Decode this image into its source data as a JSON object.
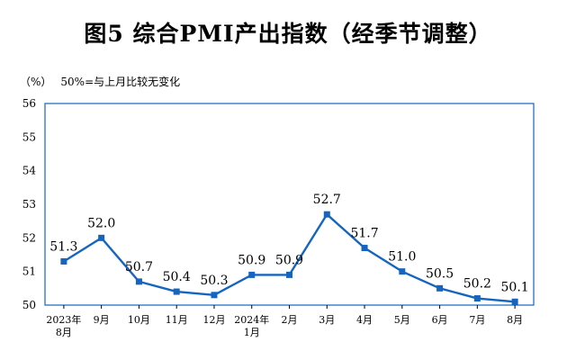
{
  "title": "图5  综合PMI产出指数（经季节调整）",
  "unit_label": "（%）",
  "reference_note": "50%=与上月比较无变化",
  "colors": {
    "series": "#1565c0",
    "frame": "#1565c0"
  },
  "chart_data": {
    "type": "line",
    "categories": [
      [
        "2023年",
        "8月"
      ],
      [
        "9月"
      ],
      [
        "10月"
      ],
      [
        "11月"
      ],
      [
        "12月"
      ],
      [
        "2024年",
        "1月"
      ],
      [
        "2月"
      ],
      [
        "3月"
      ],
      [
        "4月"
      ],
      [
        "5月"
      ],
      [
        "6月"
      ],
      [
        "7月"
      ],
      [
        "8月"
      ]
    ],
    "values": [
      51.3,
      52.0,
      50.7,
      50.4,
      50.3,
      50.9,
      50.9,
      52.7,
      51.7,
      51.0,
      50.5,
      50.2,
      50.1
    ],
    "data_labels": [
      "51.3",
      "52.0",
      "50.7",
      "50.4",
      "50.3",
      "50.9",
      "50.9",
      "52.7",
      "51.7",
      "51.0",
      "50.5",
      "50.2",
      "50.1"
    ],
    "ylim": [
      50,
      56
    ],
    "yticks": [
      50,
      51,
      52,
      53,
      54,
      55,
      56
    ],
    "grid": false,
    "marker": "square"
  }
}
